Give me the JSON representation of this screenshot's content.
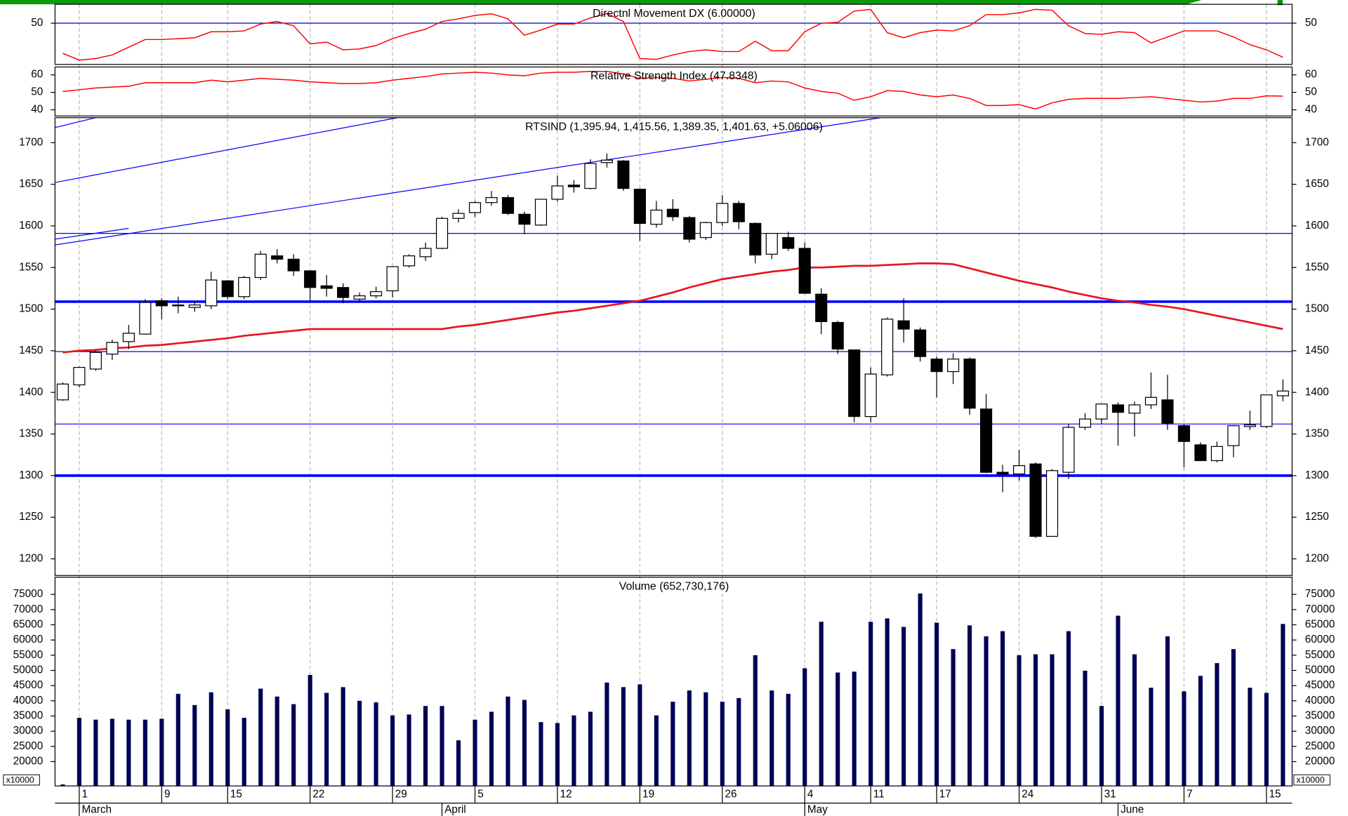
{
  "x_axis": {
    "categories": [
      null,
      "1",
      null,
      null,
      null,
      null,
      "9",
      null,
      null,
      null,
      "15",
      null,
      null,
      null,
      null,
      "22",
      null,
      null,
      null,
      null,
      "29",
      null,
      null,
      null,
      null,
      "5",
      null,
      null,
      null,
      null,
      "12",
      null,
      null,
      null,
      null,
      "19",
      null,
      null,
      null,
      null,
      "26",
      null,
      null,
      null,
      null,
      "4",
      null,
      null,
      null,
      "11",
      null,
      null,
      null,
      "17",
      null,
      null,
      null,
      null,
      "24",
      null,
      null,
      null,
      null,
      "31",
      null,
      null,
      null,
      null,
      "7",
      null,
      null,
      null,
      null,
      "15",
      null
    ],
    "months": [
      null,
      "March",
      null,
      null,
      null,
      null,
      null,
      null,
      null,
      null,
      null,
      null,
      null,
      null,
      null,
      null,
      null,
      null,
      null,
      null,
      null,
      null,
      null,
      "April",
      null,
      null,
      null,
      null,
      null,
      null,
      null,
      null,
      null,
      null,
      null,
      null,
      null,
      null,
      null,
      null,
      null,
      null,
      null,
      null,
      null,
      "May",
      null,
      null,
      null,
      null,
      null,
      null,
      null,
      null,
      null,
      null,
      null,
      null,
      null,
      null,
      null,
      null,
      null,
      null,
      "June",
      null,
      null,
      null,
      null,
      null,
      null,
      null,
      null,
      null,
      null
    ]
  },
  "chart_data": [
    {
      "type": "line",
      "title": "Directnl Movement DX (6.00000)",
      "color": "#ff0000",
      "grid": true,
      "grid_color": "#0000cc",
      "ylim": [
        -3.3,
        74.4
      ],
      "yticks": [
        50
      ],
      "values": [
        11.1,
        2.2,
        4.4,
        8.9,
        18.9,
        28.9,
        28.9,
        30,
        31.1,
        38.9,
        38.9,
        40,
        48.9,
        52.2,
        46.7,
        23.3,
        25.6,
        15.6,
        16.7,
        21.1,
        30,
        36.7,
        42.2,
        52.2,
        55.6,
        60,
        62.2,
        55.6,
        34.4,
        41.1,
        48.9,
        48.9,
        56.7,
        62.2,
        52.2,
        4.4,
        3.3,
        8.9,
        13.3,
        15.6,
        13.3,
        13.3,
        26.7,
        14.4,
        14.4,
        38.9,
        50,
        51.1,
        65.6,
        67.8,
        37.8,
        31.1,
        37.8,
        41.1,
        40,
        46.7,
        61.1,
        61.1,
        63.3,
        67.8,
        66.7,
        46.7,
        36.7,
        35.6,
        38.9,
        37.8,
        24.4,
        32.2,
        40,
        40,
        40,
        32.2,
        22.2,
        15.6,
        6
      ]
    },
    {
      "type": "line",
      "title": "Relative Strength Index (47.8348)",
      "color": "#ff0000",
      "grid": false,
      "ylim": [
        36.5,
        64.5
      ],
      "yticks": [
        40,
        50,
        60
      ],
      "values": [
        50.5,
        51.5,
        52.5,
        53,
        53.5,
        55.5,
        55.5,
        55.5,
        55.5,
        57,
        56,
        57,
        58,
        57.5,
        57,
        56,
        55.5,
        55,
        55,
        55.5,
        57,
        58,
        59,
        60.5,
        61,
        61.5,
        61,
        60,
        59.5,
        61,
        61.5,
        61.5,
        62,
        62,
        60.5,
        58,
        58.5,
        58,
        56.5,
        57.5,
        58.5,
        58,
        55.5,
        56.5,
        56,
        52.5,
        50.5,
        49.5,
        45.5,
        47.5,
        51,
        50.5,
        48.5,
        47.5,
        48.5,
        46.5,
        42.5,
        42.5,
        43,
        40.5,
        44,
        46,
        46.5,
        46.5,
        46.5,
        47,
        47.5,
        46.5,
        45.5,
        44.5,
        45,
        46.5,
        46.5,
        48,
        47.83
      ]
    },
    {
      "type": "candlestick",
      "title": "RTSIND (1,395.94, 1,415.56, 1,389.35, 1,401.63, +5.06006)",
      "up_color": "#ffffff",
      "down_color": "#000000",
      "grid": false,
      "ylim": [
        1180,
        1730
      ],
      "yticks": [
        1200,
        1250,
        1300,
        1350,
        1400,
        1450,
        1500,
        1550,
        1600,
        1650,
        1700
      ],
      "open": [
        1391,
        1409,
        1428,
        1446,
        1461,
        1470,
        1510,
        1505,
        1502,
        1504,
        1534,
        1515,
        1538,
        1564,
        1560,
        1546,
        1528,
        1526,
        1512,
        1516,
        1522,
        1552,
        1563,
        1573,
        1609,
        1616,
        1628,
        1634,
        1614,
        1601,
        1632,
        1649,
        1645,
        1676,
        1678,
        1644,
        1602,
        1620,
        1610,
        1586,
        1604,
        1627,
        1603,
        1566,
        1586,
        1573,
        1518,
        1484,
        1451,
        1371,
        1421,
        1486,
        1475,
        1440,
        1425,
        1440,
        1380,
        1304,
        1302,
        1314,
        1227,
        1304,
        1358,
        1368,
        1385,
        1375,
        1385,
        1391,
        1360,
        1337,
        1318,
        1336,
        1359,
        1359,
        1395.94
      ],
      "high": [
        1412,
        1431,
        1450,
        1463,
        1481,
        1512,
        1513,
        1515,
        1510,
        1545,
        1535,
        1540,
        1570,
        1572,
        1566,
        1546,
        1541,
        1531,
        1520,
        1527,
        1551,
        1566,
        1580,
        1611,
        1620,
        1630,
        1642,
        1637,
        1617,
        1632,
        1660,
        1655,
        1680,
        1687,
        1679,
        1645,
        1630,
        1632,
        1612,
        1605,
        1637,
        1630,
        1604,
        1591,
        1593,
        1580,
        1525,
        1486,
        1451,
        1430,
        1490,
        1513,
        1478,
        1443,
        1447,
        1442,
        1398,
        1313,
        1331,
        1316,
        1308,
        1362,
        1375,
        1386,
        1388,
        1389,
        1424,
        1421,
        1362,
        1340,
        1341,
        1360,
        1378,
        1397,
        1415.56
      ],
      "low": [
        1390,
        1406,
        1426,
        1439,
        1452,
        1470,
        1488,
        1495,
        1497,
        1500,
        1512,
        1512,
        1535,
        1555,
        1540,
        1510,
        1515,
        1507,
        1508,
        1513,
        1514,
        1550,
        1558,
        1572,
        1604,
        1611,
        1624,
        1613,
        1590,
        1600,
        1629,
        1640,
        1644,
        1670,
        1642,
        1582,
        1598,
        1606,
        1580,
        1583,
        1600,
        1596,
        1555,
        1560,
        1570,
        1519,
        1470,
        1446,
        1364,
        1364,
        1419,
        1460,
        1437,
        1394,
        1410,
        1373,
        1303,
        1280,
        1294,
        1225,
        1227,
        1296,
        1355,
        1362,
        1336,
        1347,
        1380,
        1355,
        1310,
        1318,
        1316,
        1322,
        1355,
        1357,
        1389.35
      ],
      "close": [
        1410,
        1430,
        1448,
        1460,
        1471,
        1508,
        1504,
        1504,
        1505,
        1535,
        1515,
        1538,
        1566,
        1560,
        1546,
        1526,
        1525,
        1514,
        1516,
        1521,
        1551,
        1564,
        1573,
        1609,
        1615,
        1628,
        1634,
        1615,
        1602,
        1632,
        1648,
        1647,
        1675,
        1679,
        1645,
        1603,
        1619,
        1611,
        1584,
        1604,
        1627,
        1605,
        1565,
        1591,
        1573,
        1519,
        1485,
        1452,
        1371,
        1422,
        1488,
        1476,
        1443,
        1425,
        1440,
        1381,
        1304,
        1302,
        1312,
        1227,
        1306,
        1358,
        1368,
        1386,
        1376,
        1385,
        1394,
        1363,
        1341,
        1318,
        1335,
        1360,
        1361,
        1397,
        1401.63
      ],
      "moving_average": {
        "color": "#e8141e",
        "values": [
          1448,
          1450,
          1451,
          1453,
          1454,
          1456,
          1457,
          1459,
          1461,
          1463,
          1465,
          1468,
          1470,
          1472,
          1474,
          1476,
          1476,
          1476,
          1476,
          1476,
          1476,
          1476,
          1476,
          1476,
          1479,
          1481,
          1484,
          1487,
          1490,
          1493,
          1496,
          1498,
          1501,
          1504,
          1507,
          1510,
          1515,
          1520,
          1526,
          1531,
          1536,
          1539,
          1542,
          1545,
          1547,
          1550,
          1550,
          1551,
          1552,
          1552,
          1553,
          1554,
          1555,
          1555,
          1554,
          1549,
          1544,
          1539,
          1534,
          1530,
          1526,
          1521,
          1517,
          1513,
          1510,
          1508,
          1505,
          1503,
          1500,
          1496,
          1492,
          1488,
          1484,
          1480,
          1476
        ]
      },
      "levels": [
        1509,
        1300
      ],
      "reference_lines": [
        1591,
        1449,
        1362
      ],
      "line_color": "#0000ff",
      "trendlines": [
        {
          "from": [
            -0.5,
            1718
          ],
          "to": [
            2,
            1730
          ]
        },
        {
          "from": [
            -0.5,
            1652
          ],
          "to": [
            20.3,
            1730
          ]
        },
        {
          "from": [
            -0.5,
            1577
          ],
          "to": [
            49.6,
            1730
          ]
        },
        {
          "from": [
            -0.5,
            1584
          ],
          "to": [
            4,
            1597
          ]
        }
      ]
    },
    {
      "type": "bar",
      "title": "Volume (652,730,176)",
      "color": "#000055",
      "unit_label": "x10000",
      "grid": false,
      "ylim": [
        12000,
        80650
      ],
      "yticks": [
        20000,
        25000,
        30000,
        35000,
        40000,
        45000,
        50000,
        55000,
        60000,
        65000,
        70000,
        75000
      ],
      "values": [
        12500,
        34400,
        33800,
        34100,
        33800,
        33800,
        34100,
        42300,
        38600,
        42800,
        37200,
        34400,
        44000,
        41400,
        38900,
        48500,
        42600,
        44500,
        40000,
        39500,
        35200,
        35500,
        38300,
        38300,
        27000,
        33800,
        36400,
        41400,
        40300,
        33000,
        32700,
        35200,
        36400,
        46000,
        44500,
        45400,
        35200,
        39700,
        43400,
        42800,
        39700,
        40900,
        55000,
        43400,
        42300,
        50700,
        66000,
        49300,
        49600,
        66000,
        67100,
        64300,
        75300,
        65700,
        57000,
        64800,
        61200,
        62900,
        55000,
        55300,
        55300,
        62900,
        49900,
        38300,
        68000,
        55300,
        44300,
        61200,
        43100,
        48200,
        52400,
        57000,
        44300,
        42600,
        65273
      ]
    }
  ]
}
